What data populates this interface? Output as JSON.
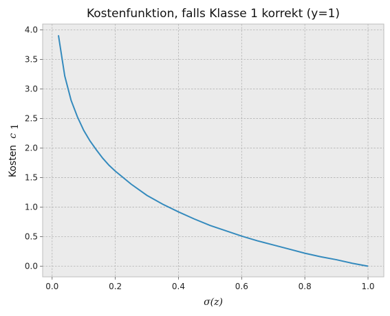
{
  "chart_data": {
    "type": "line",
    "title": "Kostenfunktion, falls Klasse 1 korrekt (y=1)",
    "xlabel": "σ(z)",
    "ylabel_text": "Kosten",
    "ylabel_math": "c",
    "ylabel_sub": "1",
    "xlim": [
      -0.03,
      1.05
    ],
    "ylim": [
      -0.18,
      4.1
    ],
    "x_ticks": [
      0.0,
      0.2,
      0.4,
      0.6,
      0.8,
      1.0
    ],
    "x_tick_labels": [
      "0.0",
      "0.2",
      "0.4",
      "0.6",
      "0.8",
      "1.0"
    ],
    "y_ticks": [
      0.0,
      0.5,
      1.0,
      1.5,
      2.0,
      2.5,
      3.0,
      3.5,
      4.0
    ],
    "y_tick_labels": [
      "0.0",
      "0.5",
      "1.0",
      "1.5",
      "2.0",
      "2.5",
      "3.0",
      "3.5",
      "4.0"
    ],
    "grid": true,
    "series": [
      {
        "line_color": "#348abd",
        "x": [
          0.02,
          0.04,
          0.06,
          0.08,
          0.1,
          0.12,
          0.14,
          0.16,
          0.18,
          0.2,
          0.25,
          0.3,
          0.35,
          0.4,
          0.45,
          0.5,
          0.55,
          0.6,
          0.65,
          0.7,
          0.75,
          0.8,
          0.85,
          0.9,
          0.95,
          1.0
        ],
        "y": [
          3.91,
          3.22,
          2.81,
          2.53,
          2.3,
          2.12,
          1.97,
          1.83,
          1.71,
          1.61,
          1.39,
          1.2,
          1.05,
          0.92,
          0.8,
          0.69,
          0.6,
          0.51,
          0.43,
          0.36,
          0.29,
          0.22,
          0.16,
          0.11,
          0.05,
          0.0
        ]
      }
    ]
  },
  "style": {
    "plot_background": "#ebebeb",
    "axes_edge": "#bcbcbc",
    "grid_color": "#b2b2b2"
  }
}
